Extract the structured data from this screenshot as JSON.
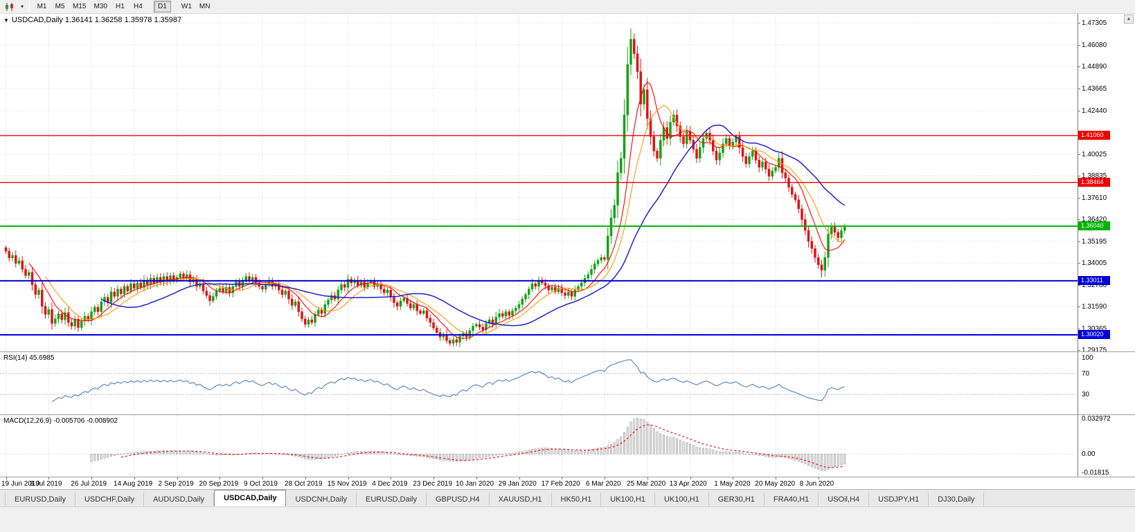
{
  "toolbar": {
    "timeframes": [
      "M1",
      "M5",
      "M15",
      "M30",
      "H1",
      "H4",
      "D1",
      "W1",
      "MN"
    ],
    "active_timeframe": "D1",
    "gap_before": [
      "D1",
      "W1"
    ],
    "scroll_up_icon": "▲"
  },
  "chart": {
    "symbol": "USDCAD",
    "period": "Daily",
    "title_line": "USDCAD,Daily 1.36141 1.36258 1.35978 1.35987"
  },
  "chart_data": {
    "type": "candlestick",
    "symbol": "USDCAD",
    "timeframe": "Daily",
    "last_ohlc": {
      "open": 1.36141,
      "high": 1.36258,
      "low": 1.35978,
      "close": 1.35987
    },
    "bars_per_label": 13,
    "x_labels": [
      "19 Jun 2019",
      "8 Jul 2019",
      "26 Jul 2019",
      "14 Aug 2019",
      "2 Sep 2019",
      "20 Sep 2019",
      "9 Oct 2019",
      "28 Oct 2019",
      "15 Nov 2019",
      "4 Dec 2019",
      "23 Dec 2019",
      "10 Jan 2020",
      "29 Jan 2020",
      "17 Feb 2020",
      "6 Mar 2020",
      "25 Mar 2020",
      "13 Apr 2020",
      "1 May 2020",
      "20 May 2020",
      "8 Jun 2020"
    ],
    "closes": [
      1.3465,
      1.3428,
      1.3442,
      1.3398,
      1.3412,
      1.3365,
      1.333,
      1.3348,
      1.328,
      1.3225,
      1.325,
      1.316,
      1.3115,
      1.3142,
      1.3065,
      1.309,
      1.3118,
      1.3085,
      1.3125,
      1.307,
      1.305,
      1.3088,
      1.3042,
      1.3078,
      1.3105,
      1.3085,
      1.313,
      1.3155,
      1.313,
      1.3185,
      1.321,
      1.318,
      1.324,
      1.3215,
      1.3255,
      1.323,
      1.327,
      1.3245,
      1.3285,
      1.326,
      1.329,
      1.3265,
      1.3305,
      1.328,
      1.3315,
      1.329,
      1.332,
      1.3295,
      1.3325,
      1.33,
      1.333,
      1.3305,
      1.332,
      1.334,
      1.3315,
      1.3335,
      1.3295,
      1.331,
      1.327,
      1.3285,
      1.3245,
      1.322,
      1.319,
      1.3215,
      1.3245,
      1.326,
      1.324,
      1.3265,
      1.3235,
      1.327,
      1.3295,
      1.327,
      1.3305,
      1.3325,
      1.33,
      1.332,
      1.329,
      1.327,
      1.3255,
      1.328,
      1.33,
      1.327,
      1.3285,
      1.325,
      1.3225,
      1.3245,
      1.32,
      1.3165,
      1.3185,
      1.313,
      1.309,
      1.306,
      1.3085,
      1.307,
      1.3115,
      1.314,
      1.312,
      1.317,
      1.3195,
      1.322,
      1.32,
      1.325,
      1.328,
      1.3265,
      1.331,
      1.329,
      1.3305,
      1.3275,
      1.3295,
      1.3265,
      1.329,
      1.33,
      1.327,
      1.3285,
      1.3255,
      1.3235,
      1.325,
      1.321,
      1.318,
      1.316,
      1.319,
      1.3205,
      1.3175,
      1.315,
      1.317,
      1.3135,
      1.312,
      1.3135,
      1.3095,
      1.307,
      1.304,
      1.3015,
      1.299,
      1.3005,
      1.297,
      1.2955,
      1.2975,
      1.296,
      1.2995,
      1.301,
      1.299,
      1.3025,
      1.305,
      1.306,
      1.3045,
      1.303,
      1.3065,
      1.3085,
      1.306,
      1.31,
      1.312,
      1.3105,
      1.313,
      1.311,
      1.3135,
      1.315,
      1.317,
      1.32,
      1.3225,
      1.3255,
      1.3285,
      1.327,
      1.3305,
      1.329,
      1.3275,
      1.325,
      1.3265,
      1.324,
      1.326,
      1.3235,
      1.322,
      1.324,
      1.3215,
      1.325,
      1.327,
      1.329,
      1.3315,
      1.3335,
      1.3365,
      1.3395,
      1.3415,
      1.343,
      1.342,
      1.355,
      1.365,
      1.372,
      1.39,
      1.398,
      1.422,
      1.45,
      1.464,
      1.456,
      1.446,
      1.428,
      1.436,
      1.42,
      1.41,
      1.402,
      1.398,
      1.408,
      1.415,
      1.409,
      1.418,
      1.422,
      1.416,
      1.41,
      1.406,
      1.413,
      1.408,
      1.403,
      1.398,
      1.404,
      1.409,
      1.412,
      1.408,
      1.402,
      1.397,
      1.401,
      1.406,
      1.409,
      1.405,
      1.407,
      1.41,
      1.404,
      1.399,
      1.395,
      1.399,
      1.402,
      1.397,
      1.393,
      1.396,
      1.392,
      1.388,
      1.391,
      1.393,
      1.398,
      1.39,
      1.387,
      1.382,
      1.378,
      1.375,
      1.37,
      1.364,
      1.358,
      1.352,
      1.348,
      1.343,
      1.339,
      1.336,
      1.343,
      1.356,
      1.36,
      1.357,
      1.354,
      1.358,
      1.3599
    ],
    "wick_overrides": [
      {
        "index": 190,
        "high": 1.4668
      },
      {
        "index": 248,
        "low": 1.332
      }
    ],
    "price_axis": {
      "view_max": 1.47803,
      "view_min": 1.29098,
      "ticks": [
        "1.47305",
        "1.46080",
        "1.44890",
        "1.43665",
        "1.42440",
        "1.40025",
        "1.38835",
        "1.37610",
        "1.36420",
        "1.35195",
        "1.34005",
        "1.32780",
        "1.31590",
        "1.30365",
        "1.29175"
      ],
      "unlabeled_gridlines": [
        1.41215
      ]
    },
    "hlines": [
      {
        "price": 1.4106,
        "label": "1.41060",
        "color": "#ee0000",
        "width": 1.4
      },
      {
        "price": 1.38464,
        "label": "1.38464",
        "color": "#ee0000",
        "width": 1.4
      },
      {
        "price": 1.3604,
        "label": "1.36040",
        "color": "#00b400",
        "width": 2
      },
      {
        "price": 1.33011,
        "label": "1.33011",
        "color": "#0000d8",
        "width": 2
      },
      {
        "price": 1.3002,
        "label": "1.30020",
        "color": "#0000d8",
        "width": 2
      }
    ],
    "moving_averages": [
      {
        "period": 8,
        "color": "#ff0000",
        "width": 1.1
      },
      {
        "period": 13,
        "color": "#ff9900",
        "width": 1.1
      },
      {
        "period": 30,
        "color": "#2020cc",
        "width": 1.5
      }
    ],
    "style": {
      "bull_color": "#16a216",
      "bear_color": "#e01414"
    },
    "rsi": {
      "label": "RSI(14) 45.6985",
      "period": 14,
      "levels": [
        70,
        30
      ],
      "axis_labels": [
        "100",
        "70",
        "30"
      ],
      "color": "#4f81bd"
    },
    "macd": {
      "label": "MACD(12,26,9) -0.005706 -0.008902",
      "fast": 12,
      "slow": 26,
      "signal": 9,
      "view_max": 0.032972,
      "view_min": -0.01815,
      "axis_labels": [
        "0.032972",
        "0.00",
        "-0.01815"
      ],
      "histogram_fill": "#e2e2e2",
      "histogram_stroke": "#8f8f8f",
      "signal_color": "#ee0000"
    }
  },
  "tabs": {
    "items": [
      {
        "label": "EURUSD,Daily",
        "active": false
      },
      {
        "label": "USDCHF,Daily",
        "active": false
      },
      {
        "label": "AUDUSD,Daily",
        "active": false
      },
      {
        "label": "USDCAD,Daily",
        "active": true
      },
      {
        "label": "USDCNH,Daily",
        "active": false
      },
      {
        "label": "EURUSD,Daily",
        "active": false
      },
      {
        "label": "GBPUSD,H4",
        "active": false
      },
      {
        "label": "XAUUSD,H1",
        "active": false
      },
      {
        "label": "HK50,H1",
        "active": false
      },
      {
        "label": "UK100,H1",
        "active": false
      },
      {
        "label": "UK100,H1",
        "active": false
      },
      {
        "label": "GER30,H1",
        "active": false
      },
      {
        "label": "FRA40,H1",
        "active": false
      },
      {
        "label": "USOil,H4",
        "active": false
      },
      {
        "label": "USDJPY,H1",
        "active": false
      },
      {
        "label": "DJ30,Daily",
        "active": false
      }
    ]
  }
}
